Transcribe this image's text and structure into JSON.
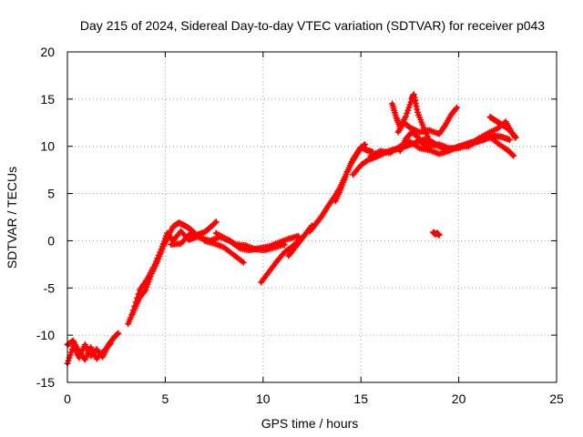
{
  "chart_data": {
    "type": "scatter",
    "title": "Day 215 of 2024, Sidereal Day-to-day VTEC variation (SDTVAR) for receiver p043",
    "xlabel": "GPS time / hours",
    "ylabel": "SDTVAR / TECUs",
    "xlim": [
      0,
      25
    ],
    "ylim": [
      -15,
      20
    ],
    "xticks": [
      0,
      5,
      10,
      15,
      20,
      25
    ],
    "yticks": [
      -15,
      -10,
      -5,
      0,
      5,
      10,
      15,
      20
    ],
    "grid": true,
    "marker": "plus",
    "series": [
      {
        "name": "SDTVAR",
        "color": "#ff0000",
        "tracks": [
          [
            [
              0.0,
              -13.0
            ],
            [
              0.3,
              -11.2
            ],
            [
              0.6,
              -12.4
            ],
            [
              0.9,
              -11.0
            ],
            [
              1.2,
              -12.2
            ],
            [
              1.5,
              -11.5
            ],
            [
              1.8,
              -12.3
            ],
            [
              2.1,
              -11.0
            ],
            [
              2.4,
              -10.2
            ],
            [
              2.6,
              -9.8
            ]
          ],
          [
            [
              0.0,
              -11.0
            ],
            [
              0.3,
              -10.6
            ],
            [
              0.6,
              -11.8
            ],
            [
              0.9,
              -12.6
            ],
            [
              1.2,
              -11.3
            ],
            [
              1.5,
              -12.5
            ],
            [
              1.9,
              -11.6
            ],
            [
              2.2,
              -10.9
            ]
          ],
          [
            [
              3.1,
              -8.8
            ],
            [
              3.4,
              -7.4
            ],
            [
              3.7,
              -6.0
            ],
            [
              4.0,
              -5.2
            ],
            [
              4.3,
              -3.5
            ],
            [
              4.6,
              -2.2
            ],
            [
              4.9,
              -0.6
            ],
            [
              5.1,
              0.3
            ],
            [
              5.4,
              1.5
            ],
            [
              5.7,
              1.9
            ],
            [
              6.0,
              1.6
            ],
            [
              6.3,
              1.2
            ],
            [
              6.6,
              0.6
            ],
            [
              7.0,
              0.9
            ],
            [
              7.3,
              1.4
            ],
            [
              7.6,
              2.0
            ]
          ],
          [
            [
              3.3,
              -7.8
            ],
            [
              3.7,
              -5.2
            ],
            [
              4.1,
              -4.0
            ],
            [
              4.4,
              -2.8
            ],
            [
              4.8,
              -0.9
            ],
            [
              5.1,
              0.8
            ],
            [
              5.4,
              0.0
            ],
            [
              5.8,
              1.0
            ],
            [
              6.2,
              0.1
            ],
            [
              6.6,
              0.4
            ]
          ],
          [
            [
              5.3,
              -0.4
            ],
            [
              5.8,
              -0.3
            ],
            [
              6.3,
              0.8
            ],
            [
              6.8,
              0.3
            ],
            [
              7.3,
              0.0
            ],
            [
              7.8,
              0.4
            ],
            [
              8.3,
              0.0
            ],
            [
              8.8,
              -0.8
            ],
            [
              9.3,
              -1.0
            ],
            [
              9.8,
              -0.8
            ],
            [
              10.3,
              -0.6
            ],
            [
              10.8,
              -0.2
            ],
            [
              11.3,
              0.2
            ],
            [
              11.8,
              0.5
            ]
          ],
          [
            [
              7.0,
              0.0
            ],
            [
              7.5,
              -0.3
            ],
            [
              8.0,
              -0.7
            ],
            [
              8.5,
              -1.5
            ],
            [
              9.0,
              -2.3
            ]
          ],
          [
            [
              7.6,
              0.8
            ],
            [
              8.1,
              0.2
            ],
            [
              8.6,
              -0.4
            ],
            [
              9.1,
              -0.5
            ],
            [
              9.6,
              -0.9
            ],
            [
              10.1,
              -1.0
            ],
            [
              10.6,
              -0.7
            ],
            [
              11.1,
              -0.4
            ]
          ],
          [
            [
              9.9,
              -4.4
            ],
            [
              10.3,
              -3.3
            ],
            [
              10.7,
              -2.2
            ],
            [
              11.1,
              -1.2
            ],
            [
              11.5,
              -0.6
            ],
            [
              11.9,
              0.2
            ]
          ],
          [
            [
              11.3,
              -1.6
            ],
            [
              11.6,
              -0.8
            ],
            [
              11.9,
              0.0
            ],
            [
              12.2,
              0.8
            ],
            [
              12.5,
              1.6
            ]
          ],
          [
            [
              12.4,
              1.0
            ],
            [
              12.7,
              1.8
            ],
            [
              13.0,
              2.6
            ],
            [
              13.3,
              3.6
            ],
            [
              13.6,
              4.5
            ],
            [
              13.9,
              5.5
            ],
            [
              14.2,
              6.8
            ],
            [
              14.5,
              8.2
            ],
            [
              14.8,
              9.2
            ],
            [
              15.0,
              9.9
            ],
            [
              15.3,
              9.6
            ],
            [
              15.6,
              9.4
            ]
          ],
          [
            [
              13.7,
              4.2
            ],
            [
              14.0,
              5.6
            ],
            [
              14.3,
              7.3
            ],
            [
              14.6,
              8.6
            ],
            [
              14.9,
              9.6
            ],
            [
              15.2,
              10.2
            ]
          ],
          [
            [
              14.6,
              7.0
            ],
            [
              15.0,
              8.0
            ],
            [
              15.4,
              8.6
            ],
            [
              15.8,
              8.9
            ],
            [
              16.2,
              9.3
            ],
            [
              16.6,
              9.6
            ],
            [
              17.0,
              9.8
            ],
            [
              17.4,
              10.1
            ],
            [
              17.8,
              10.4
            ],
            [
              18.2,
              10.7
            ],
            [
              18.6,
              10.5
            ],
            [
              19.0,
              10.0
            ],
            [
              19.4,
              9.7
            ],
            [
              19.8,
              9.8
            ],
            [
              20.2,
              10.1
            ],
            [
              20.6,
              10.4
            ],
            [
              21.0,
              10.5
            ],
            [
              21.4,
              10.8
            ],
            [
              21.8,
              11.1
            ],
            [
              22.2,
              11.0
            ],
            [
              22.6,
              10.7
            ]
          ],
          [
            [
              15.5,
              9.0
            ],
            [
              16.0,
              9.5
            ],
            [
              16.5,
              9.3
            ],
            [
              17.0,
              10.0
            ],
            [
              17.5,
              10.5
            ],
            [
              18.0,
              9.8
            ],
            [
              18.5,
              9.6
            ],
            [
              19.0,
              9.2
            ],
            [
              19.5,
              9.5
            ],
            [
              20.0,
              10.0
            ],
            [
              20.5,
              10.0
            ],
            [
              21.0,
              10.6
            ],
            [
              21.5,
              11.2
            ],
            [
              22.0,
              10.3
            ],
            [
              22.5,
              9.6
            ],
            [
              22.8,
              9.0
            ]
          ],
          [
            [
              16.6,
              14.5
            ],
            [
              16.8,
              13.1
            ],
            [
              17.0,
              12.0
            ],
            [
              17.3,
              13.2
            ],
            [
              17.6,
              15.0
            ],
            [
              17.7,
              15.5
            ],
            [
              17.9,
              13.6
            ],
            [
              18.2,
              12.0
            ],
            [
              18.5,
              10.6
            ],
            [
              18.8,
              10.2
            ]
          ],
          [
            [
              16.9,
              11.5
            ],
            [
              17.2,
              12.5
            ],
            [
              17.5,
              12.0
            ],
            [
              18.0,
              11.5
            ],
            [
              18.5,
              11.7
            ],
            [
              19.0,
              11.3
            ],
            [
              19.3,
              12.2
            ],
            [
              19.6,
              13.3
            ],
            [
              19.9,
              14.1
            ]
          ],
          [
            [
              17.0,
              9.5
            ],
            [
              17.3,
              10.8
            ],
            [
              17.6,
              11.5
            ],
            [
              17.9,
              11.0
            ],
            [
              18.2,
              10.2
            ],
            [
              18.5,
              10.0
            ]
          ],
          [
            [
              18.5,
              10.0
            ],
            [
              19.0,
              10.2
            ],
            [
              19.5,
              9.8
            ],
            [
              20.0,
              9.8
            ],
            [
              20.5,
              10.2
            ],
            [
              21.0,
              10.8
            ],
            [
              21.5,
              11.4
            ],
            [
              22.0,
              11.9
            ],
            [
              22.4,
              12.6
            ],
            [
              22.7,
              11.5
            ],
            [
              22.9,
              10.9
            ]
          ],
          [
            [
              21.6,
              13.1
            ],
            [
              21.9,
              12.7
            ],
            [
              22.2,
              12.3
            ],
            [
              22.5,
              11.9
            ],
            [
              22.9,
              11.0
            ]
          ],
          [
            [
              18.7,
              0.9
            ],
            [
              18.8,
              0.7
            ],
            [
              18.9,
              0.8
            ],
            [
              19.0,
              0.6
            ]
          ]
        ]
      }
    ]
  }
}
